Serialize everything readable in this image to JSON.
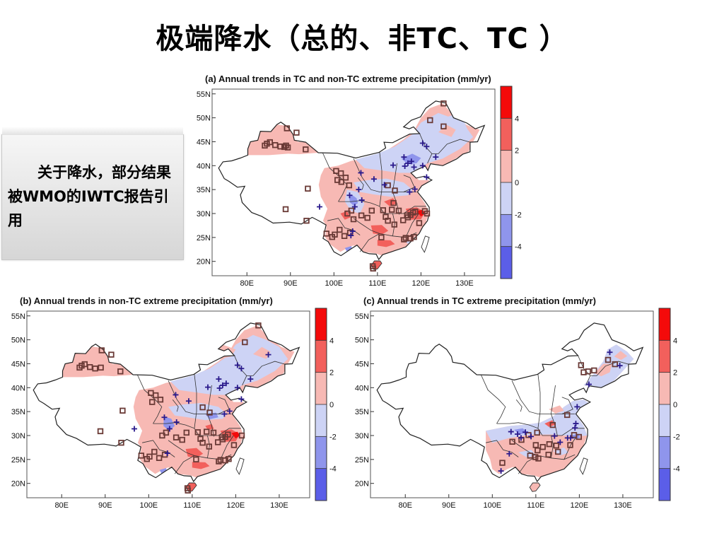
{
  "slide": {
    "title": "极端降水（总的、非TC、TC ）",
    "note": "关于降水，部分结果被WMO的IWTC报告引用"
  },
  "colorbar": {
    "ticks": [
      "4",
      "2",
      "0",
      "-2",
      "-4"
    ],
    "colors": [
      "#f40a0a",
      "#f2605c",
      "#f7b9b4",
      "#cdd3f5",
      "#8f95ec",
      "#5b5ee8"
    ]
  },
  "panels": [
    {
      "id": "a",
      "title": "(a) Annual trends in TC and non-TC extreme precipitation (mm/yr)",
      "lat_labels": [
        "55N",
        "50N",
        "45N",
        "40N",
        "35N",
        "30N",
        "25N",
        "20N"
      ],
      "lon_labels": [
        "80E",
        "90E",
        "100E",
        "110E",
        "120E",
        "130E"
      ],
      "markers_square": [
        [
          125.2,
          53.0
        ],
        [
          85.3,
          44.9
        ],
        [
          84.1,
          44.2
        ],
        [
          84.6,
          44.6
        ],
        [
          86.5,
          44.3
        ],
        [
          87.7,
          44.0
        ],
        [
          89.0,
          44.2
        ],
        [
          89.4,
          43.8
        ],
        [
          88.6,
          43.9
        ],
        [
          89.2,
          47.8
        ],
        [
          91.4,
          46.9
        ],
        [
          93.5,
          43.4
        ],
        [
          100.5,
          38.9
        ],
        [
          101.6,
          38.4
        ],
        [
          102.7,
          37.5
        ],
        [
          100.8,
          37.0
        ],
        [
          103.5,
          35.9
        ],
        [
          101.7,
          36.6
        ],
        [
          94.0,
          35.2
        ],
        [
          88.9,
          30.9
        ],
        [
          93.7,
          28.5
        ],
        [
          98.3,
          25.8
        ],
        [
          99.6,
          25.1
        ],
        [
          101.3,
          26.6
        ],
        [
          103.7,
          26.0
        ],
        [
          102.4,
          25.3
        ],
        [
          100.2,
          25.6
        ],
        [
          104.5,
          28.8
        ],
        [
          106.3,
          29.6
        ],
        [
          107.7,
          29.1
        ],
        [
          108.7,
          30.6
        ],
        [
          103.1,
          30.0
        ],
        [
          104.0,
          30.6
        ],
        [
          111.3,
          30.7
        ],
        [
          113.3,
          30.8
        ],
        [
          112.4,
          28.5
        ],
        [
          113.9,
          27.7
        ],
        [
          114.9,
          30.6
        ],
        [
          115.9,
          28.6
        ],
        [
          117.6,
          29.7
        ],
        [
          118.2,
          30.2
        ],
        [
          119.6,
          28.0
        ],
        [
          121.4,
          30.0
        ],
        [
          120.9,
          30.5
        ],
        [
          116.8,
          29.6
        ],
        [
          114.0,
          34.8
        ],
        [
          113.7,
          32.2
        ],
        [
          112.4,
          35.9
        ],
        [
          117.0,
          29.2
        ],
        [
          118.7,
          30.4
        ],
        [
          109.0,
          18.5
        ],
        [
          108.9,
          19.0
        ],
        [
          110.9,
          25.0
        ],
        [
          116.1,
          24.6
        ],
        [
          117.6,
          24.8
        ],
        [
          111.9,
          29.3
        ],
        [
          118.4,
          25.1
        ],
        [
          125.2,
          48.2
        ],
        [
          122.1,
          49.5
        ],
        [
          117.5,
          24.8
        ],
        [
          116.5,
          24.9
        ]
      ],
      "markers_plus": [
        [
          116.3,
          39.9
        ],
        [
          117.0,
          40.5
        ],
        [
          117.8,
          40.9
        ],
        [
          116.1,
          41.8
        ],
        [
          118.4,
          39.7
        ],
        [
          121.3,
          37.6
        ],
        [
          113.6,
          40.1
        ],
        [
          111.6,
          36.0
        ],
        [
          109.2,
          37.2
        ],
        [
          106.2,
          38.5
        ],
        [
          120.4,
          44.7
        ],
        [
          121.3,
          44.0
        ],
        [
          123.4,
          41.8
        ],
        [
          120.4,
          40.0
        ],
        [
          117.4,
          34.5
        ],
        [
          118.6,
          35.1
        ],
        [
          96.7,
          31.4
        ],
        [
          103.6,
          33.8
        ],
        [
          104.8,
          31.4
        ],
        [
          106.4,
          32.8
        ],
        [
          105.7,
          35.0
        ],
        [
          104.3,
          26.3
        ],
        [
          103.9,
          25.4
        ]
      ]
    },
    {
      "id": "b",
      "title": "(b) Annual trends in non-TC extreme precipitation (mm/yr)",
      "lat_labels": [
        "55N",
        "50N",
        "45N",
        "40N",
        "35N",
        "30N",
        "25N",
        "20N"
      ],
      "lon_labels": [
        "80E",
        "90E",
        "100E",
        "110E",
        "120E",
        "130E"
      ],
      "markers_square": [
        [
          125.2,
          53.0
        ],
        [
          85.3,
          44.9
        ],
        [
          84.1,
          44.2
        ],
        [
          84.6,
          44.6
        ],
        [
          86.5,
          44.3
        ],
        [
          87.7,
          44.0
        ],
        [
          89.0,
          44.2
        ],
        [
          89.2,
          47.8
        ],
        [
          91.4,
          46.9
        ],
        [
          93.5,
          43.4
        ],
        [
          100.5,
          38.9
        ],
        [
          101.6,
          38.4
        ],
        [
          102.7,
          37.5
        ],
        [
          100.8,
          37.0
        ],
        [
          94.0,
          35.2
        ],
        [
          88.9,
          30.9
        ],
        [
          93.7,
          28.5
        ],
        [
          98.3,
          25.8
        ],
        [
          99.6,
          25.1
        ],
        [
          101.3,
          26.6
        ],
        [
          103.7,
          26.0
        ],
        [
          102.4,
          25.3
        ],
        [
          100.2,
          25.6
        ],
        [
          106.3,
          29.6
        ],
        [
          107.7,
          29.1
        ],
        [
          108.7,
          30.6
        ],
        [
          103.1,
          30.0
        ],
        [
          104.0,
          30.6
        ],
        [
          111.3,
          30.7
        ],
        [
          113.3,
          30.8
        ],
        [
          112.4,
          28.5
        ],
        [
          113.9,
          27.7
        ],
        [
          114.9,
          30.6
        ],
        [
          115.9,
          28.6
        ],
        [
          117.6,
          29.7
        ],
        [
          118.2,
          30.2
        ],
        [
          119.6,
          28.0
        ],
        [
          121.4,
          30.0
        ],
        [
          116.8,
          29.6
        ],
        [
          114.0,
          34.8
        ],
        [
          112.4,
          35.9
        ],
        [
          117.0,
          29.2
        ],
        [
          109.0,
          18.5
        ],
        [
          108.9,
          19.0
        ],
        [
          110.9,
          25.0
        ],
        [
          116.1,
          24.6
        ],
        [
          117.6,
          24.8
        ],
        [
          111.9,
          29.3
        ],
        [
          118.4,
          25.1
        ],
        [
          122.1,
          49.5
        ],
        [
          116.5,
          24.9
        ]
      ],
      "markers_plus": [
        [
          116.3,
          39.9
        ],
        [
          117.0,
          40.5
        ],
        [
          117.8,
          40.9
        ],
        [
          116.1,
          41.8
        ],
        [
          121.3,
          37.6
        ],
        [
          113.6,
          40.1
        ],
        [
          109.2,
          37.2
        ],
        [
          106.2,
          38.5
        ],
        [
          120.4,
          44.7
        ],
        [
          121.3,
          44.0
        ],
        [
          123.4,
          41.8
        ],
        [
          120.4,
          40.0
        ],
        [
          117.4,
          34.5
        ],
        [
          96.7,
          31.4
        ],
        [
          103.6,
          33.8
        ],
        [
          104.8,
          31.4
        ],
        [
          106.4,
          32.8
        ],
        [
          104.3,
          26.3
        ],
        [
          127.5,
          46.9
        ],
        [
          118.6,
          35.1
        ]
      ]
    },
    {
      "id": "c",
      "title": "(c) Annual trends in TC extreme precipitation (mm/yr)",
      "lat_labels": [
        "55N",
        "50N",
        "45N",
        "40N",
        "35N",
        "30N",
        "25N",
        "20N"
      ],
      "lon_labels": [
        "80E",
        "90E",
        "100E",
        "110E",
        "120E",
        "130E"
      ],
      "markers_square": [
        [
          120.4,
          44.7
        ],
        [
          121.0,
          43.2
        ],
        [
          122.0,
          43.4
        ],
        [
          123.4,
          43.6
        ],
        [
          126.6,
          45.8
        ],
        [
          128.2,
          44.9
        ],
        [
          117.2,
          34.3
        ],
        [
          113.9,
          32.2
        ],
        [
          104.6,
          28.7
        ],
        [
          106.7,
          29.1
        ],
        [
          108.3,
          30.1
        ],
        [
          110.3,
          30.6
        ],
        [
          110.0,
          28.0
        ],
        [
          110.4,
          26.9
        ],
        [
          111.6,
          27.6
        ],
        [
          113.1,
          28.2
        ],
        [
          112.9,
          26.0
        ],
        [
          109.9,
          25.5
        ],
        [
          108.7,
          25.8
        ],
        [
          110.6,
          25.2
        ],
        [
          102.3,
          24.3
        ],
        [
          114.7,
          27.9
        ],
        [
          117.9,
          28.0
        ],
        [
          118.8,
          30.1
        ],
        [
          119.9,
          29.7
        ],
        [
          115.1,
          26.6
        ]
      ],
      "markers_plus": [
        [
          127.0,
          47.4
        ],
        [
          129.3,
          44.6
        ],
        [
          119.5,
          36.0
        ],
        [
          122.2,
          40.7
        ],
        [
          119.2,
          32.5
        ],
        [
          119.0,
          31.6
        ],
        [
          118.0,
          29.5
        ],
        [
          117.3,
          29.5
        ],
        [
          115.6,
          28.6
        ],
        [
          114.3,
          29.9
        ],
        [
          108.9,
          29.8
        ],
        [
          106.6,
          29.5
        ],
        [
          104.3,
          30.8
        ],
        [
          107.6,
          30.7
        ],
        [
          105.8,
          30.3
        ],
        [
          103.9,
          26.2
        ],
        [
          102.0,
          22.6
        ]
      ]
    }
  ]
}
